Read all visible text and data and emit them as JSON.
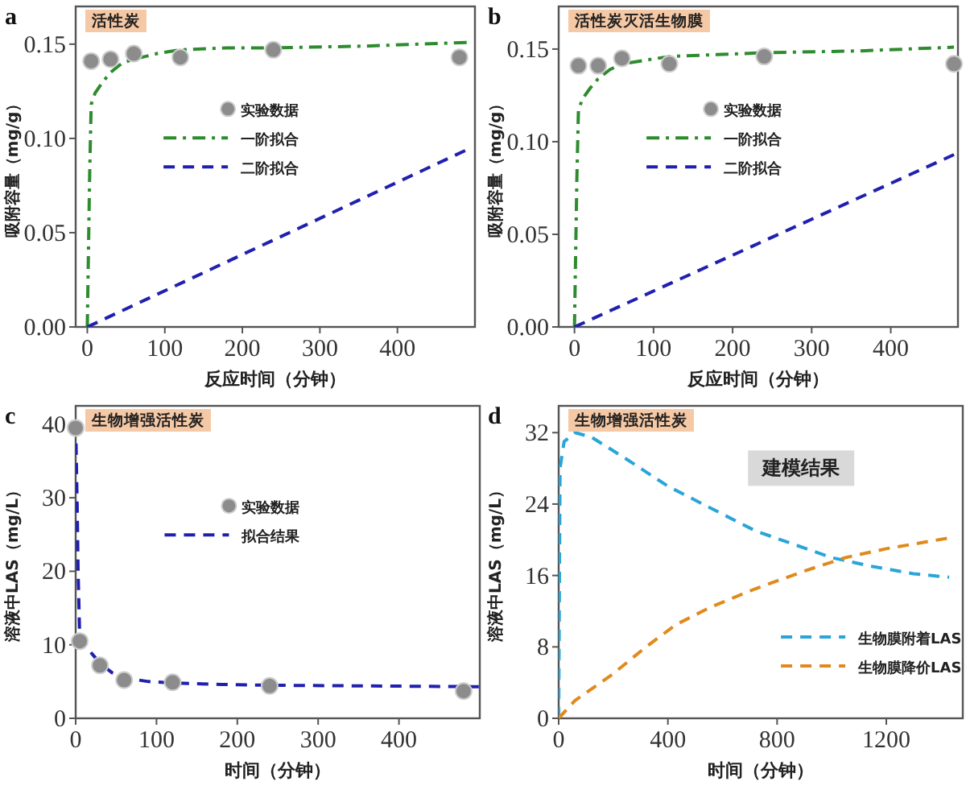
{
  "chart_data": [
    {
      "type": "line",
      "title": "活性炭",
      "xlabel": "反应时间（分钟）",
      "ylabel": "吸附容量（mg/g）",
      "xlim": [
        -15,
        500
      ],
      "ylim": [
        0,
        0.17
      ],
      "xticks": [
        0,
        100,
        200,
        300,
        400
      ],
      "yticks": [
        {
          "value": 0,
          "label": "0.00"
        },
        {
          "value": 0.05,
          "label": "0.05"
        },
        {
          "value": 0.1,
          "label": "0.10"
        },
        {
          "value": 0.15,
          "label": "0.15"
        }
      ],
      "legend": "center",
      "annotations": [
        "a"
      ],
      "series": [
        {
          "name": "实验数据",
          "type": "scatter",
          "marker": "circle",
          "color": "#8c8c8c",
          "x": [
            5,
            30,
            60,
            120,
            240,
            480
          ],
          "values": [
            0.141,
            0.142,
            0.145,
            0.143,
            0.147,
            0.143
          ]
        },
        {
          "name": "一阶拟合",
          "type": "line",
          "line_style": "dashdot",
          "color": "#2e8b2e",
          "x": [
            0,
            3,
            5,
            10,
            20,
            30,
            45,
            60,
            90,
            120,
            180,
            240,
            360,
            495
          ],
          "values": [
            0,
            0.08,
            0.118,
            0.124,
            0.13,
            0.135,
            0.14,
            0.142,
            0.145,
            0.147,
            0.148,
            0.148,
            0.149,
            0.151
          ]
        },
        {
          "name": "二阶拟合",
          "type": "line",
          "line_style": "dashed",
          "color": "#2020b0",
          "x": [
            0,
            495
          ],
          "values": [
            0,
            0.095
          ]
        }
      ]
    },
    {
      "type": "line",
      "title": "活性炭灭活生物膜",
      "xlabel": "反应时间（分钟）",
      "ylabel": "吸附容量（mg/g）",
      "xlim": [
        -20,
        485
      ],
      "ylim": [
        0,
        0.173
      ],
      "xticks": [
        0,
        100,
        200,
        300,
        400
      ],
      "yticks": [
        {
          "value": 0,
          "label": "0.00"
        },
        {
          "value": 0.05,
          "label": "0.05"
        },
        {
          "value": 0.1,
          "label": "0.10"
        },
        {
          "value": 0.15,
          "label": "0.15"
        }
      ],
      "legend": "center",
      "annotations": [
        "b"
      ],
      "series": [
        {
          "name": "实验数据",
          "type": "scatter",
          "marker": "circle",
          "color": "#8c8c8c",
          "x": [
            5,
            30,
            60,
            120,
            240,
            480
          ],
          "values": [
            0.141,
            0.141,
            0.145,
            0.142,
            0.146,
            0.142
          ]
        },
        {
          "name": "一阶拟合",
          "type": "line",
          "line_style": "dashdot",
          "color": "#2e8b2e",
          "x": [
            0,
            3,
            5,
            10,
            20,
            30,
            45,
            60,
            90,
            120,
            180,
            240,
            360,
            480
          ],
          "values": [
            0,
            0.08,
            0.117,
            0.123,
            0.129,
            0.134,
            0.139,
            0.142,
            0.144,
            0.146,
            0.147,
            0.148,
            0.149,
            0.151
          ]
        },
        {
          "name": "二阶拟合",
          "type": "line",
          "line_style": "dashed",
          "color": "#2020b0",
          "x": [
            0,
            480
          ],
          "values": [
            0,
            0.093
          ]
        }
      ]
    },
    {
      "type": "line",
      "title": "生物增强活性炭",
      "xlabel": "时间（分钟）",
      "ylabel": "溶液中LAS（mg/L）",
      "xlim": [
        0,
        500
      ],
      "ylim": [
        0,
        42.5
      ],
      "xticks": [
        0,
        100,
        200,
        300,
        400
      ],
      "yticks": [
        0,
        10,
        20,
        30,
        40
      ],
      "legend": "center",
      "annotations": [
        "c"
      ],
      "series": [
        {
          "name": "实验数据",
          "type": "scatter",
          "marker": "circle",
          "color": "#8c8c8c",
          "x": [
            0,
            5,
            30,
            60,
            120,
            240,
            480
          ],
          "values": [
            39.5,
            10.5,
            7.2,
            5.2,
            4.9,
            4.4,
            3.7
          ]
        },
        {
          "name": "拟合结果",
          "type": "line",
          "line_style": "dashed",
          "color": "#2020b0",
          "x": [
            0,
            2,
            3,
            5,
            10,
            20,
            30,
            45,
            60,
            90,
            120,
            180,
            240,
            360,
            500
          ],
          "values": [
            40,
            28,
            20,
            11,
            10.3,
            8.8,
            7.5,
            6.2,
            5.5,
            5,
            4.8,
            4.6,
            4.5,
            4.4,
            4.3
          ]
        }
      ]
    },
    {
      "type": "line",
      "title": "生物增强活性炭",
      "xlabel": "时间（分钟）",
      "ylabel": "溶液中LAS（mg/L）",
      "xlim": [
        0,
        1480
      ],
      "ylim": [
        0,
        35
      ],
      "xticks": [
        0,
        400,
        800,
        1200
      ],
      "yticks": [
        0,
        8,
        16,
        24,
        32
      ],
      "legend": "bottom right",
      "annotations": [
        "d",
        "建模结果"
      ],
      "series": [
        {
          "name": "生物膜附着LAS",
          "type": "line",
          "line_style": "dashed",
          "color": "#2aa5d8",
          "x": [
            0,
            5,
            20,
            60,
            120,
            250,
            400,
            560,
            720,
            860,
            1000,
            1150,
            1300,
            1430
          ],
          "values": [
            0,
            28,
            31,
            32,
            31.5,
            29,
            26,
            23.5,
            21,
            19.5,
            18,
            17,
            16.2,
            15.8
          ]
        },
        {
          "name": "生物膜降价LAS",
          "type": "line",
          "line_style": "dashed",
          "color": "#e08a1e",
          "x": [
            0,
            60,
            200,
            320,
            430,
            560,
            720,
            900,
            1050,
            1200,
            1430
          ],
          "values": [
            0,
            2,
            5,
            8,
            10.5,
            12.5,
            14.5,
            16.5,
            18,
            19,
            20.2
          ]
        }
      ]
    }
  ]
}
